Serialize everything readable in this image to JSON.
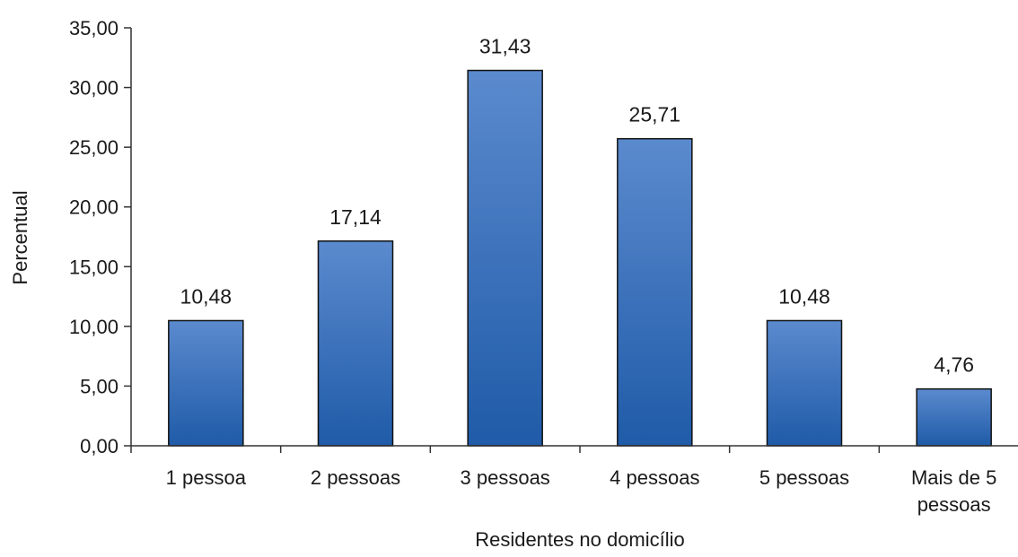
{
  "chart_data": {
    "type": "bar",
    "categories": [
      "1 pessoa",
      "2 pessoas",
      "3 pessoas",
      "4 pessoas",
      "5 pessoas",
      "Mais de 5 pessoas"
    ],
    "category_lines": [
      [
        "1 pessoa"
      ],
      [
        "2 pessoas"
      ],
      [
        "3 pessoas"
      ],
      [
        "4 pessoas"
      ],
      [
        "5 pessoas"
      ],
      [
        "Mais de 5",
        "pessoas"
      ]
    ],
    "values": [
      10.48,
      17.14,
      31.43,
      25.71,
      10.48,
      4.76
    ],
    "value_labels": [
      "10,48",
      "17,14",
      "31,43",
      "25,71",
      "10,48",
      "4,76"
    ],
    "yticks": [
      "0,00",
      "5,00",
      "10,00",
      "15,00",
      "20,00",
      "25,00",
      "30,00",
      "35,00"
    ],
    "ylim": [
      0,
      35
    ],
    "xlabel": "Residentes no domicílio",
    "ylabel": "Percentual",
    "grid": false,
    "legend": "none",
    "colors": {
      "bar_top": "#5b8ace",
      "bar_bottom": "#1f5ba8",
      "bar_stroke": "#111111",
      "axis": "#333333"
    }
  }
}
